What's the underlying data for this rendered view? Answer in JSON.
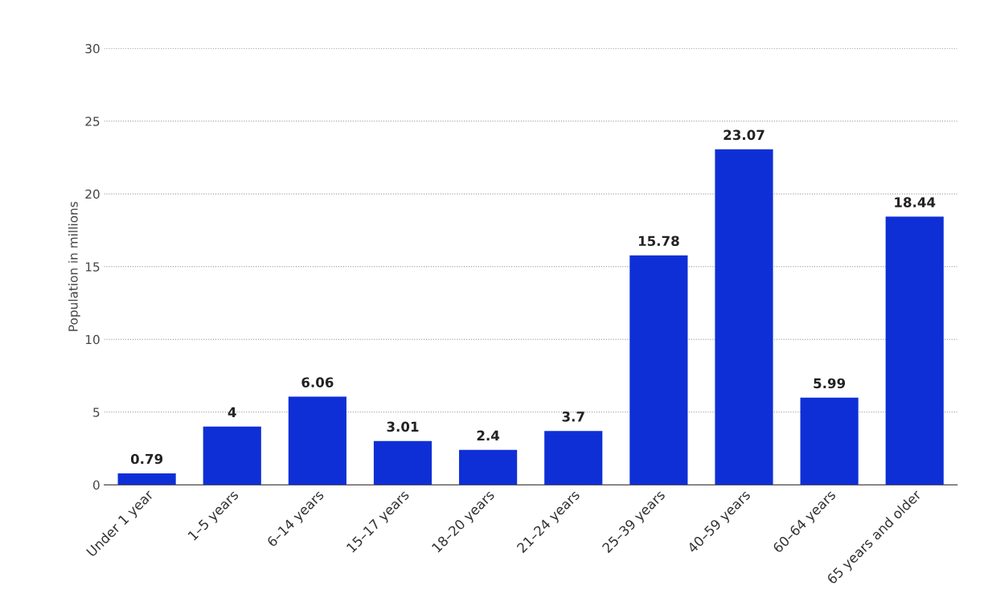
{
  "chart_data": {
    "type": "bar",
    "categories": [
      "Under 1 year",
      "1–5 years",
      "6–14 years",
      "15–17 years",
      "18–20 years",
      "21–24 years",
      "25–39 years",
      "40–59 years",
      "60–64 years",
      "65 years and older"
    ],
    "values": [
      0.79,
      4,
      6.06,
      3.01,
      2.4,
      3.7,
      15.78,
      23.07,
      5.99,
      18.44
    ],
    "color": "#0f2fd6",
    "ylabel": "Population in millions",
    "ylim": [
      0,
      30
    ],
    "yticks": [
      0,
      5,
      10,
      15,
      20,
      25,
      30
    ],
    "grid": "y",
    "data_labels": true
  }
}
